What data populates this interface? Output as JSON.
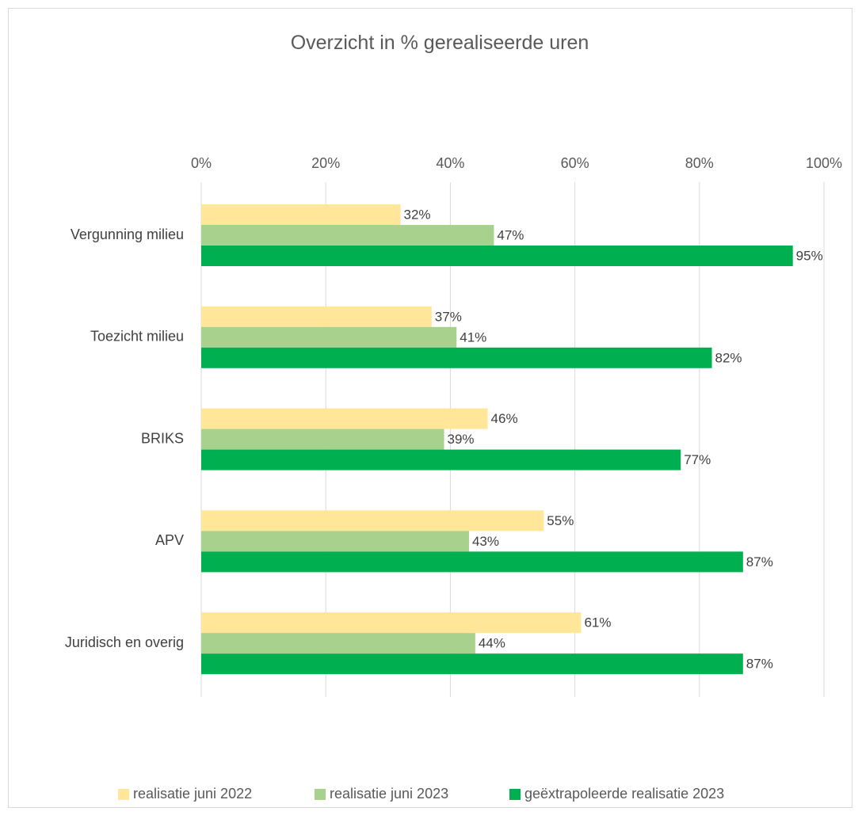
{
  "chart_data": {
    "type": "bar",
    "orientation": "horizontal",
    "title": "Overzicht in % gerealiseerde uren",
    "xlabel": "",
    "ylabel": "",
    "xlim": [
      0,
      100
    ],
    "x_ticks": [
      "0%",
      "20%",
      "40%",
      "60%",
      "80%",
      "100%"
    ],
    "x_axis_position": "top",
    "grid": true,
    "legend_position": "bottom",
    "categories": [
      "Vergunning milieu",
      "Toezicht milieu",
      "BRIKS",
      "APV",
      "Juridisch en overig"
    ],
    "series": [
      {
        "name": "realisatie juni 2022",
        "color": "#FFE699",
        "values": [
          32,
          37,
          46,
          55,
          61
        ],
        "labels": [
          "32%",
          "37%",
          "46%",
          "55%",
          "61%"
        ]
      },
      {
        "name": "realisatie juni 2023",
        "color": "#A9D18E",
        "values": [
          47,
          41,
          39,
          43,
          44
        ],
        "labels": [
          "47%",
          "41%",
          "39%",
          "43%",
          "44%"
        ]
      },
      {
        "name": "geëxtrapoleerde realisatie 2023",
        "color": "#00B050",
        "values": [
          95,
          82,
          77,
          87,
          87
        ],
        "labels": [
          "95%",
          "82%",
          "77%",
          "87%",
          "87%"
        ]
      }
    ]
  }
}
